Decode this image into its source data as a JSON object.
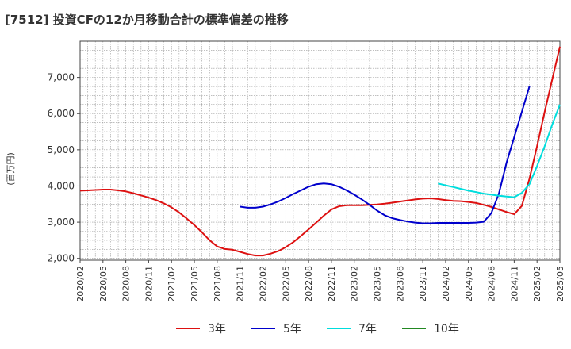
{
  "chart_data": {
    "type": "line",
    "title": "[7512]  投資CFの12か月移動合計の標準偏差の推移",
    "ylabel": "(百万円)",
    "xlabel": "",
    "ylim": [
      1950,
      8000
    ],
    "yticks": [
      2000,
      3000,
      4000,
      5000,
      6000,
      7000
    ],
    "ytick_labels": [
      "2,000",
      "3,000",
      "4,000",
      "5,000",
      "6,000",
      "7,000"
    ],
    "xtick_labels": [
      "2020/02",
      "2020/05",
      "2020/08",
      "2020/11",
      "2021/02",
      "2021/05",
      "2021/08",
      "2021/11",
      "2022/02",
      "2022/05",
      "2022/08",
      "2022/11",
      "2023/02",
      "2023/05",
      "2023/08",
      "2023/11",
      "2024/02",
      "2024/05",
      "2024/08",
      "2024/11",
      "2025/02",
      "2025/05"
    ],
    "grid": true,
    "legend_position": "bottom",
    "series": [
      {
        "name": "3年",
        "color": "#dd1111",
        "start_index": 0,
        "values": [
          3870,
          3880,
          3890,
          3900,
          3900,
          3880,
          3850,
          3800,
          3740,
          3680,
          3610,
          3520,
          3410,
          3270,
          3100,
          2920,
          2720,
          2500,
          2330,
          2260,
          2240,
          2180,
          2120,
          2080,
          2080,
          2130,
          2200,
          2310,
          2450,
          2620,
          2800,
          2990,
          3180,
          3350,
          3440,
          3470,
          3470,
          3470,
          3480,
          3490,
          3510,
          3540,
          3570,
          3600,
          3630,
          3650,
          3660,
          3640,
          3610,
          3590,
          3580,
          3560,
          3530,
          3480,
          3420,
          3350,
          3280,
          3220,
          3450,
          4200,
          5100,
          6050,
          6950,
          7850
        ]
      },
      {
        "name": "5年",
        "color": "#0000cc",
        "start_index": 21,
        "values": [
          3430,
          3400,
          3400,
          3430,
          3490,
          3570,
          3670,
          3780,
          3880,
          3980,
          4050,
          4070,
          4050,
          3980,
          3880,
          3760,
          3630,
          3480,
          3320,
          3190,
          3110,
          3060,
          3020,
          2990,
          2970,
          2970,
          2980,
          2980,
          2980,
          2980,
          2980,
          2990,
          3010,
          3250,
          3800,
          4650,
          5350,
          6050,
          6750
        ]
      },
      {
        "name": "7年",
        "color": "#00dddd",
        "start_index": 47,
        "values": [
          4070,
          4020,
          3970,
          3920,
          3870,
          3830,
          3790,
          3760,
          3730,
          3710,
          3690,
          3810,
          4050,
          4550,
          5100,
          5700,
          6250
        ]
      },
      {
        "name": "10年",
        "color": "#228822",
        "start_index": 0,
        "values": []
      }
    ]
  }
}
